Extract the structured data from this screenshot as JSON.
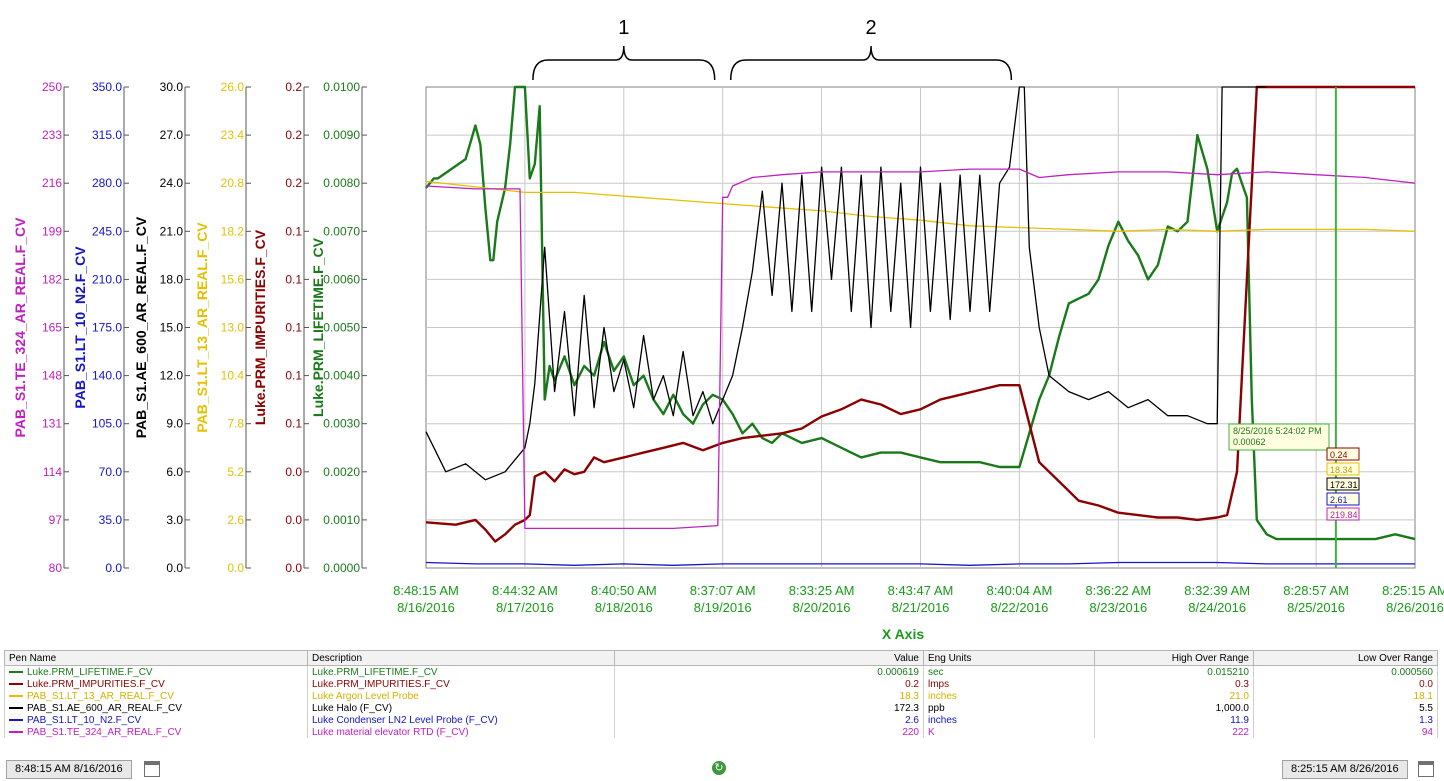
{
  "chart_data": {
    "type": "line",
    "xlabel": "X Axis",
    "x_ticks": [
      {
        "time": "8:48:15 AM",
        "date": "8/16/2016"
      },
      {
        "time": "8:44:32 AM",
        "date": "8/17/2016"
      },
      {
        "time": "8:40:50 AM",
        "date": "8/18/2016"
      },
      {
        "time": "8:37:07 AM",
        "date": "8/19/2016"
      },
      {
        "time": "8:33:25 AM",
        "date": "8/20/2016"
      },
      {
        "time": "8:43:47 AM",
        "date": "8/21/2016"
      },
      {
        "time": "8:40:04 AM",
        "date": "8/22/2016"
      },
      {
        "time": "8:36:22 AM",
        "date": "8/23/2016"
      },
      {
        "time": "8:32:39 AM",
        "date": "8/24/2016"
      },
      {
        "time": "8:28:57 AM",
        "date": "8/25/2016"
      },
      {
        "time": "8:25:15 AM",
        "date": "8/26/2016"
      }
    ],
    "x_range_days": [
      0,
      10
    ],
    "grid": true,
    "annotations": [
      {
        "label": "1",
        "x_start": 1.0,
        "x_end": 3.0
      },
      {
        "label": "2",
        "x_start": 3.0,
        "x_end": 6.0
      }
    ],
    "cursor": {
      "x": 9.2,
      "label_time": "8/25/2016 5:24:02 PM",
      "label_value": "0.00062"
    },
    "axes": [
      {
        "id": "te324",
        "label": "PAB_S1.TE_324_AR_REAL.F_CV",
        "color": "#c020c0",
        "ticks": [
          "80",
          "97",
          "114",
          "131",
          "148",
          "165",
          "182",
          "199",
          "216",
          "233",
          "250"
        ],
        "range": [
          80,
          250
        ]
      },
      {
        "id": "lt10",
        "label": "PAB_S1.LT_10_N2.F_CV",
        "color": "#1414c8",
        "ticks": [
          "0.0",
          "35.0",
          "70.0",
          "105.0",
          "140.0",
          "175.0",
          "210.0",
          "245.0",
          "280.0",
          "315.0",
          "350.0"
        ],
        "range": [
          0,
          350
        ]
      },
      {
        "id": "ae600",
        "label": "PAB_S1.AE_600_AR_REAL.F_CV",
        "color": "#000000",
        "ticks": [
          "0.0",
          "3.0",
          "6.0",
          "9.0",
          "12.0",
          "15.0",
          "18.0",
          "21.0",
          "24.0",
          "27.0",
          "30.0"
        ],
        "range": [
          0,
          30
        ]
      },
      {
        "id": "lt13",
        "label": "PAB_S1.LT_13_AR_REAL.F_CV",
        "color": "#e6c000",
        "ticks": [
          "0.0",
          "2.6",
          "5.2",
          "7.8",
          "10.4",
          "13.0",
          "15.6",
          "18.2",
          "20.8",
          "23.4",
          "26.0"
        ],
        "range": [
          0,
          26
        ]
      },
      {
        "id": "imp",
        "label": "Luke.PRM_IMPURITIES.F_CV",
        "color": "#8b0000",
        "ticks": [
          "0.0",
          "0.0",
          "0.0",
          "0.1",
          "0.1",
          "0.1",
          "0.1",
          "0.1",
          "0.2",
          "0.2",
          "0.2"
        ],
        "range": [
          0,
          0.2
        ]
      },
      {
        "id": "life",
        "label": "Luke.PRM_LIFETIME.F_CV",
        "color": "#1a7a1a",
        "ticks": [
          "0.0000",
          "0.0010",
          "0.0020",
          "0.0030",
          "0.0040",
          "0.0050",
          "0.0060",
          "0.0070",
          "0.0080",
          "0.0090",
          "0.0100"
        ],
        "range": [
          0,
          0.01
        ]
      }
    ],
    "cursor_values": [
      {
        "axis": "imp",
        "value": "0.24"
      },
      {
        "axis": "lt13",
        "value": "18.34"
      },
      {
        "axis": "ae600",
        "value": "172.31"
      },
      {
        "axis": "lt10",
        "value": "2.61"
      },
      {
        "axis": "te324",
        "value": "219.84"
      }
    ],
    "series": [
      {
        "name": "Luke.PRM_LIFETIME.F_CV",
        "axis": "life",
        "x": [
          0,
          0.08,
          0.12,
          0.4,
          0.5,
          0.55,
          0.6,
          0.65,
          0.68,
          0.72,
          0.8,
          0.85,
          0.9,
          0.95,
          1.0,
          1.05,
          1.1,
          1.15,
          1.2,
          1.25,
          1.3,
          1.4,
          1.5,
          1.6,
          1.7,
          1.8,
          1.9,
          2.0,
          2.1,
          2.2,
          2.3,
          2.4,
          2.5,
          2.6,
          2.7,
          2.8,
          2.9,
          3.0,
          3.1,
          3.2,
          3.3,
          3.4,
          3.5,
          3.6,
          3.8,
          4.0,
          4.2,
          4.4,
          4.6,
          4.8,
          5.0,
          5.2,
          5.4,
          5.6,
          5.8,
          6.0,
          6.1,
          6.2,
          6.3,
          6.4,
          6.5,
          6.6,
          6.7,
          6.8,
          6.9,
          7.0,
          7.1,
          7.2,
          7.3,
          7.4,
          7.5,
          7.6,
          7.7,
          7.8,
          7.9,
          8.0,
          8.1,
          8.15,
          8.2,
          8.25,
          8.3,
          8.35,
          8.4,
          8.5,
          8.6,
          8.8,
          9.0,
          9.2,
          9.4,
          9.6,
          9.8,
          10.0
        ],
        "y": [
          0.0079,
          0.0081,
          0.0081,
          0.0085,
          0.0092,
          0.0088,
          0.0075,
          0.0064,
          0.0064,
          0.0072,
          0.0079,
          0.0088,
          0.01,
          0.01,
          0.01,
          0.0081,
          0.0084,
          0.0096,
          0.0035,
          0.0042,
          0.0039,
          0.0044,
          0.0038,
          0.0042,
          0.004,
          0.0047,
          0.0041,
          0.0044,
          0.0038,
          0.004,
          0.0035,
          0.0032,
          0.0036,
          0.0032,
          0.003,
          0.0034,
          0.0036,
          0.0035,
          0.0032,
          0.0028,
          0.003,
          0.0027,
          0.0026,
          0.0028,
          0.0026,
          0.0027,
          0.0025,
          0.0023,
          0.0024,
          0.0024,
          0.0023,
          0.0022,
          0.0022,
          0.0022,
          0.0021,
          0.0021,
          0.0028,
          0.0035,
          0.004,
          0.0048,
          0.0055,
          0.0056,
          0.0057,
          0.006,
          0.0067,
          0.0072,
          0.0068,
          0.0065,
          0.006,
          0.0063,
          0.0071,
          0.007,
          0.0072,
          0.009,
          0.0083,
          0.007,
          0.0076,
          0.0082,
          0.0083,
          0.008,
          0.0077,
          0.0035,
          0.001,
          0.0007,
          0.0006,
          0.0006,
          0.0006,
          0.0006,
          0.0006,
          0.0006,
          0.0007,
          0.0006
        ]
      },
      {
        "name": "Luke.PRM_IMPURITIES.F_CV",
        "axis": "imp",
        "x": [
          0,
          0.3,
          0.5,
          0.6,
          0.7,
          0.8,
          0.9,
          1.0,
          1.05,
          1.1,
          1.2,
          1.3,
          1.4,
          1.5,
          1.6,
          1.7,
          1.8,
          1.9,
          2.0,
          2.2,
          2.4,
          2.6,
          2.8,
          3.0,
          3.2,
          3.4,
          3.6,
          3.8,
          4.0,
          4.2,
          4.4,
          4.6,
          4.8,
          5.0,
          5.2,
          5.4,
          5.6,
          5.8,
          6.0,
          6.1,
          6.2,
          6.4,
          6.6,
          6.8,
          7.0,
          7.2,
          7.4,
          7.6,
          7.8,
          8.0,
          8.1,
          8.2,
          8.3,
          8.4,
          8.5,
          9.0,
          9.5,
          10.0
        ],
        "y": [
          0.019,
          0.018,
          0.02,
          0.016,
          0.011,
          0.014,
          0.018,
          0.02,
          0.022,
          0.038,
          0.04,
          0.036,
          0.041,
          0.039,
          0.04,
          0.046,
          0.044,
          0.045,
          0.046,
          0.048,
          0.05,
          0.052,
          0.049,
          0.052,
          0.054,
          0.055,
          0.056,
          0.058,
          0.063,
          0.066,
          0.07,
          0.068,
          0.064,
          0.066,
          0.07,
          0.072,
          0.074,
          0.076,
          0.076,
          0.06,
          0.044,
          0.036,
          0.028,
          0.026,
          0.023,
          0.022,
          0.021,
          0.021,
          0.02,
          0.021,
          0.022,
          0.04,
          0.12,
          0.2,
          0.2,
          0.2,
          0.2,
          0.2
        ]
      },
      {
        "name": "PAB_S1.LT_13_AR_REAL.F_CV",
        "axis": "lt13",
        "x": [
          0,
          0.5,
          1.0,
          1.5,
          2.0,
          2.5,
          3.0,
          3.5,
          4.0,
          4.5,
          5.0,
          5.5,
          6.0,
          6.5,
          7.0,
          7.5,
          8.0,
          8.5,
          9.0,
          9.5,
          10.0
        ],
        "y": [
          20.9,
          20.6,
          20.3,
          20.3,
          20.1,
          19.9,
          19.7,
          19.5,
          19.3,
          19.0,
          18.8,
          18.5,
          18.4,
          18.3,
          18.2,
          18.3,
          18.2,
          18.3,
          18.3,
          18.3,
          18.2
        ]
      },
      {
        "name": "PAB_S1.AE_600_AR_REAL.F_CV",
        "axis": "ae600",
        "x": [
          0,
          0.2,
          0.4,
          0.6,
          0.8,
          1.0,
          1.05,
          1.1,
          1.2,
          1.3,
          1.4,
          1.5,
          1.6,
          1.7,
          1.8,
          1.9,
          2.0,
          2.1,
          2.2,
          2.3,
          2.4,
          2.5,
          2.6,
          2.7,
          2.8,
          2.9,
          3.0,
          3.1,
          3.2,
          3.3,
          3.4,
          3.5,
          3.6,
          3.7,
          3.8,
          3.9,
          4.0,
          4.1,
          4.2,
          4.3,
          4.4,
          4.5,
          4.6,
          4.7,
          4.8,
          4.9,
          5.0,
          5.1,
          5.2,
          5.3,
          5.4,
          5.5,
          5.6,
          5.7,
          5.8,
          5.9,
          6.0,
          6.05,
          6.1,
          6.2,
          6.3,
          6.5,
          6.7,
          6.9,
          7.1,
          7.3,
          7.5,
          7.7,
          7.9,
          8.0,
          8.05,
          8.1,
          8.2,
          8.3,
          8.5
        ],
        "y": [
          8.5,
          6.0,
          6.5,
          5.5,
          6.0,
          7.5,
          9.0,
          11.5,
          20.0,
          11.0,
          16.0,
          9.5,
          17.0,
          10.0,
          15.0,
          11.0,
          13.0,
          10.0,
          14.5,
          10.5,
          12.0,
          9.5,
          13.5,
          9.5,
          11.0,
          9.0,
          10.5,
          12.0,
          15.0,
          18.5,
          23.5,
          17.0,
          24.0,
          16.0,
          24.5,
          16.0,
          25.0,
          18.0,
          25.0,
          16.0,
          24.5,
          15.0,
          25.0,
          16.0,
          24.0,
          15.0,
          25.0,
          16.0,
          24.0,
          15.5,
          24.5,
          16.0,
          24.5,
          16.0,
          24.0,
          25.0,
          30.0,
          30.0,
          20.0,
          15.0,
          12.0,
          11.0,
          10.5,
          11.0,
          10.0,
          10.5,
          9.5,
          9.5,
          9.0,
          9.0,
          30.0,
          30.0,
          30.0,
          30.0,
          30.0
        ]
      },
      {
        "name": "PAB_S1.LT_10_N2.F_CV",
        "axis": "lt10",
        "x": [
          0,
          0.5,
          1.0,
          1.5,
          2.0,
          2.5,
          3.0,
          3.5,
          4.0,
          4.5,
          5.0,
          5.5,
          6.0,
          6.5,
          7.0,
          7.5,
          8.0,
          8.5,
          9.0,
          9.5,
          10.0
        ],
        "y": [
          4,
          3,
          3,
          2,
          3,
          2,
          3,
          3,
          3,
          3,
          3,
          2,
          3,
          3,
          4,
          4,
          4,
          3,
          3,
          3,
          3
        ]
      },
      {
        "name": "PAB_S1.TE_324_AR_REAL.F_CV",
        "axis": "te324",
        "x": [
          0,
          0.5,
          0.9,
          0.95,
          1.0,
          1.5,
          2.0,
          2.5,
          2.95,
          3.0,
          3.05,
          3.1,
          3.3,
          3.6,
          4.0,
          4.5,
          5.0,
          5.5,
          5.95,
          6.0,
          6.2,
          6.5,
          7.0,
          7.5,
          8.0,
          8.5,
          9.0,
          9.5,
          10.0
        ],
        "y": [
          215,
          214,
          214,
          214,
          94,
          94,
          94,
          94,
          95,
          211,
          211,
          215,
          218,
          219,
          220,
          220,
          220,
          221,
          221,
          221,
          218,
          219,
          220,
          220,
          219,
          220,
          219,
          218,
          216
        ]
      }
    ]
  },
  "legend": {
    "headers": {
      "pen": "Pen Name",
      "desc": "Description",
      "value": "Value",
      "units": "Eng Units",
      "high": "High Over Range",
      "low": "Low Over Range"
    },
    "rows": [
      {
        "pen": "Luke.PRM_LIFETIME.F_CV",
        "desc": "Luke.PRM_LIFETIME.F_CV",
        "value": "0.000619",
        "units": "sec",
        "high": "0.015210",
        "low": "0.000560",
        "color": "#1a7a1a"
      },
      {
        "pen": "Luke.PRM_IMPURITIES.F_CV",
        "desc": "Luke.PRM_IMPURITIES.F_CV",
        "value": "0.2",
        "units": "lmps",
        "high": "0.3",
        "low": "0.0",
        "color": "#8b0000"
      },
      {
        "pen": "PAB_S1.LT_13_AR_REAL.F_CV",
        "desc": "Luke Argon Level Probe",
        "value": "18.3",
        "units": "inches",
        "high": "21.0",
        "low": "18.1",
        "color": "#e6c000"
      },
      {
        "pen": "PAB_S1.AE_600_AR_REAL.F_CV",
        "desc": "Luke Halo (F_CV)",
        "value": "172.3",
        "units": "ppb",
        "high": "1,000.0",
        "low": "5.5",
        "color": "#000000"
      },
      {
        "pen": "PAB_S1.LT_10_N2.F_CV",
        "desc": "Luke Condenser LN2 Level Probe (F_CV)",
        "value": "2.6",
        "units": "inches",
        "high": "11.9",
        "low": "1.3",
        "color": "#1414c8"
      },
      {
        "pen": "PAB_S1.TE_324_AR_REAL.F_CV",
        "desc": "Luke material elevator RTD (F_CV)",
        "value": "220",
        "units": "K",
        "high": "222",
        "low": "94",
        "color": "#c020c0"
      }
    ]
  },
  "status": {
    "start_time": "8:48:15 AM 8/16/2016",
    "end_time": "8:25:15 AM 8/26/2016"
  }
}
